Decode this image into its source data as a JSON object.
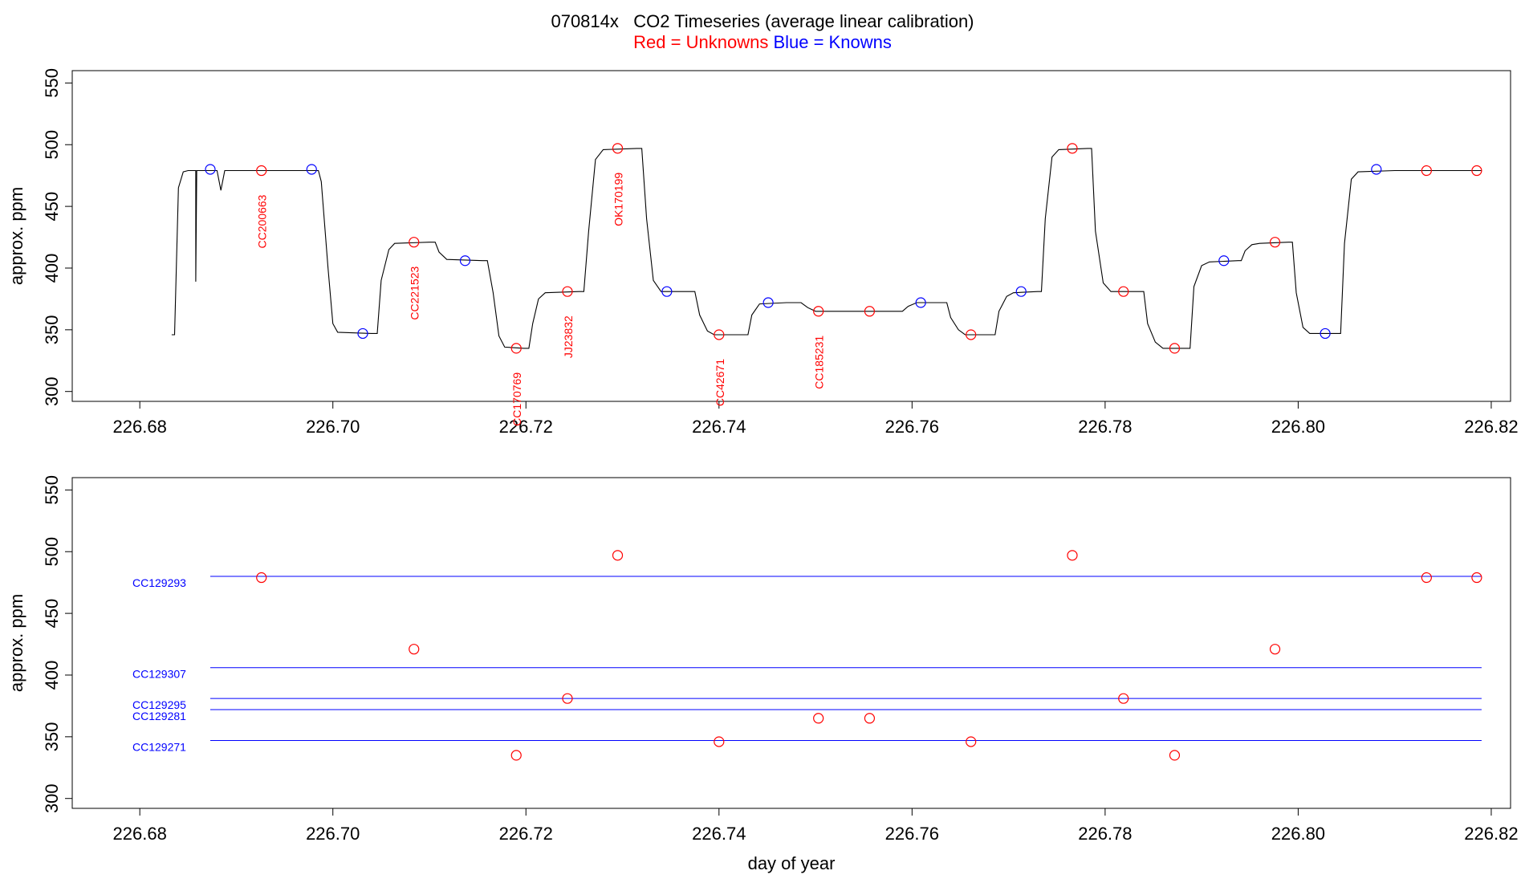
{
  "title": "070814x   CO2 Timeseries (average linear calibration)",
  "subtitle": {
    "red_text": "Red = Unknowns",
    "blue_text": "Blue = Knowns",
    "red_color": "#ff0000",
    "blue_color": "#0000ff"
  },
  "chart_data": [
    {
      "type": "line",
      "panel": "top",
      "ylabel": "approx. ppm",
      "xlabel": "",
      "xlim": [
        226.673,
        226.822
      ],
      "ylim": [
        292,
        560
      ],
      "x_ticks": [
        "226.68",
        "226.70",
        "226.72",
        "226.74",
        "226.76",
        "226.78",
        "226.80",
        "226.82"
      ],
      "y_ticks": [
        "300",
        "350",
        "400",
        "450",
        "500",
        "550"
      ],
      "trace": [
        [
          226.6833,
          346
        ],
        [
          226.6836,
          346
        ],
        [
          226.684,
          465
        ],
        [
          226.6845,
          478
        ],
        [
          226.685,
          479
        ],
        [
          226.6858,
          479
        ],
        [
          226.6858,
          389
        ],
        [
          226.6859,
          479
        ],
        [
          226.6866,
          479
        ],
        [
          226.688,
          479
        ],
        [
          226.6884,
          463
        ],
        [
          226.6888,
          479
        ],
        [
          226.698,
          479
        ],
        [
          226.6985,
          479
        ],
        [
          226.6988,
          470
        ],
        [
          226.6995,
          400
        ],
        [
          226.7,
          355
        ],
        [
          226.7005,
          348
        ],
        [
          226.704,
          347
        ],
        [
          226.7046,
          347
        ],
        [
          226.705,
          390
        ],
        [
          226.7058,
          415
        ],
        [
          226.7064,
          420
        ],
        [
          226.71,
          421
        ],
        [
          226.7106,
          421
        ],
        [
          226.711,
          413
        ],
        [
          226.7118,
          407
        ],
        [
          226.7155,
          406
        ],
        [
          226.716,
          406
        ],
        [
          226.7166,
          380
        ],
        [
          226.7172,
          345
        ],
        [
          226.7178,
          336
        ],
        [
          226.7198,
          335
        ],
        [
          226.7203,
          335
        ],
        [
          226.7207,
          355
        ],
        [
          226.7213,
          375
        ],
        [
          226.722,
          380
        ],
        [
          226.7255,
          381
        ],
        [
          226.726,
          381
        ],
        [
          226.7265,
          430
        ],
        [
          226.7272,
          488
        ],
        [
          226.728,
          496
        ],
        [
          226.7315,
          497
        ],
        [
          226.732,
          497
        ],
        [
          226.7325,
          440
        ],
        [
          226.7332,
          390
        ],
        [
          226.734,
          381
        ],
        [
          226.737,
          381
        ],
        [
          226.7375,
          381
        ],
        [
          226.738,
          362
        ],
        [
          226.7388,
          349
        ],
        [
          226.7395,
          346
        ],
        [
          226.7425,
          346
        ],
        [
          226.743,
          346
        ],
        [
          226.7434,
          362
        ],
        [
          226.7442,
          371
        ],
        [
          226.747,
          372
        ],
        [
          226.7485,
          372
        ],
        [
          226.7492,
          368
        ],
        [
          226.75,
          365
        ],
        [
          226.758,
          365
        ],
        [
          226.759,
          365
        ],
        [
          226.7596,
          369
        ],
        [
          226.7605,
          372
        ],
        [
          226.763,
          372
        ],
        [
          226.7636,
          372
        ],
        [
          226.764,
          360
        ],
        [
          226.7648,
          350
        ],
        [
          226.7655,
          346
        ],
        [
          226.7682,
          346
        ],
        [
          226.7686,
          346
        ],
        [
          226.769,
          365
        ],
        [
          226.7698,
          377
        ],
        [
          226.7705,
          380
        ],
        [
          226.773,
          381
        ],
        [
          226.7734,
          381
        ],
        [
          226.7738,
          440
        ],
        [
          226.7745,
          490
        ],
        [
          226.7752,
          496
        ],
        [
          226.7782,
          497
        ],
        [
          226.7786,
          497
        ],
        [
          226.779,
          430
        ],
        [
          226.7798,
          388
        ],
        [
          226.7806,
          381
        ],
        [
          226.7836,
          381
        ],
        [
          226.784,
          381
        ],
        [
          226.7844,
          355
        ],
        [
          226.7852,
          340
        ],
        [
          226.786,
          335
        ],
        [
          226.7885,
          335
        ],
        [
          226.7888,
          335
        ],
        [
          226.7892,
          385
        ],
        [
          226.79,
          402
        ],
        [
          226.7908,
          405
        ],
        [
          226.7938,
          406
        ],
        [
          226.7941,
          406
        ],
        [
          226.7945,
          414
        ],
        [
          226.7952,
          419
        ],
        [
          226.796,
          420
        ],
        [
          226.799,
          421
        ],
        [
          226.7994,
          421
        ],
        [
          226.7998,
          380
        ],
        [
          226.8005,
          352
        ],
        [
          226.8012,
          347
        ],
        [
          226.804,
          347
        ],
        [
          226.8044,
          347
        ],
        [
          226.8048,
          420
        ],
        [
          226.8055,
          472
        ],
        [
          226.8062,
          478
        ],
        [
          226.81,
          479
        ],
        [
          226.819,
          479
        ]
      ],
      "unknowns": [
        {
          "x": 226.6926,
          "y": 479,
          "label": "CC200663"
        },
        {
          "x": 226.7084,
          "y": 421,
          "label": "CC221523"
        },
        {
          "x": 226.719,
          "y": 335,
          "label": "CC170769"
        },
        {
          "x": 226.7243,
          "y": 381,
          "label": "JJ23832"
        },
        {
          "x": 226.7295,
          "y": 497,
          "label": "OK170199"
        },
        {
          "x": 226.74,
          "y": 346,
          "label": "CC42671"
        },
        {
          "x": 226.7503,
          "y": 365,
          "label": "CC185231"
        },
        {
          "x": 226.7556,
          "y": 365,
          "label": ""
        },
        {
          "x": 226.7661,
          "y": 346,
          "label": ""
        },
        {
          "x": 226.7766,
          "y": 497,
          "label": ""
        },
        {
          "x": 226.7819,
          "y": 381,
          "label": ""
        },
        {
          "x": 226.7872,
          "y": 335,
          "label": ""
        },
        {
          "x": 226.7976,
          "y": 421,
          "label": ""
        },
        {
          "x": 226.8133,
          "y": 479,
          "label": ""
        },
        {
          "x": 226.8185,
          "y": 479,
          "label": ""
        }
      ],
      "knowns": [
        {
          "x": 226.6873,
          "y": 480
        },
        {
          "x": 226.6978,
          "y": 480
        },
        {
          "x": 226.7031,
          "y": 347
        },
        {
          "x": 226.7137,
          "y": 406
        },
        {
          "x": 226.7346,
          "y": 381
        },
        {
          "x": 226.7451,
          "y": 372
        },
        {
          "x": 226.7609,
          "y": 372
        },
        {
          "x": 226.7713,
          "y": 381
        },
        {
          "x": 226.7923,
          "y": 406
        },
        {
          "x": 226.8028,
          "y": 347
        },
        {
          "x": 226.8081,
          "y": 480
        }
      ]
    },
    {
      "type": "scatter",
      "panel": "bottom",
      "ylabel": "approx. ppm",
      "xlabel": "day of year",
      "xlim": [
        226.673,
        226.822
      ],
      "ylim": [
        292,
        560
      ],
      "x_ticks": [
        "226.68",
        "226.70",
        "226.72",
        "226.74",
        "226.76",
        "226.78",
        "226.80",
        "226.82"
      ],
      "y_ticks": [
        "300",
        "350",
        "400",
        "450",
        "500",
        "550"
      ],
      "reference_lines": [
        {
          "name": "CC129293",
          "y": 480,
          "x_start": 226.6873,
          "x_end": 226.819
        },
        {
          "name": "CC129307",
          "y": 406,
          "x_start": 226.6873,
          "x_end": 226.819
        },
        {
          "name": "CC129295",
          "y": 381,
          "x_start": 226.6873,
          "x_end": 226.819
        },
        {
          "name": "CC129281",
          "y": 372,
          "x_start": 226.6873,
          "x_end": 226.819
        },
        {
          "name": "CC129271",
          "y": 347,
          "x_start": 226.6873,
          "x_end": 226.819
        }
      ],
      "unknowns": [
        {
          "x": 226.6926,
          "y": 479
        },
        {
          "x": 226.7084,
          "y": 421
        },
        {
          "x": 226.719,
          "y": 335
        },
        {
          "x": 226.7243,
          "y": 381
        },
        {
          "x": 226.7295,
          "y": 497
        },
        {
          "x": 226.74,
          "y": 346
        },
        {
          "x": 226.7503,
          "y": 365
        },
        {
          "x": 226.7556,
          "y": 365
        },
        {
          "x": 226.7661,
          "y": 346
        },
        {
          "x": 226.7766,
          "y": 497
        },
        {
          "x": 226.7819,
          "y": 381
        },
        {
          "x": 226.7872,
          "y": 335
        },
        {
          "x": 226.7976,
          "y": 421
        },
        {
          "x": 226.8133,
          "y": 479
        },
        {
          "x": 226.8185,
          "y": 479
        }
      ]
    }
  ]
}
